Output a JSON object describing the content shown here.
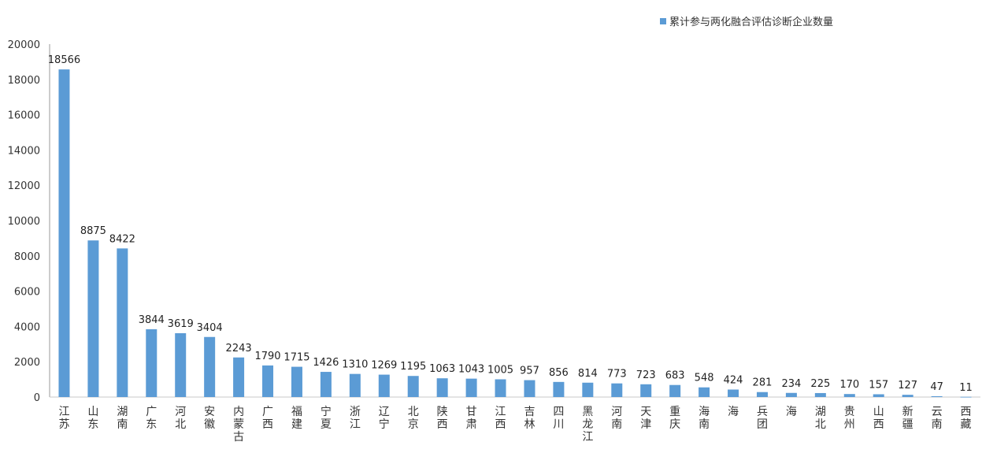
{
  "chart_data": {
    "type": "bar",
    "title": "",
    "xlabel": "",
    "ylabel": "",
    "ylim": [
      0,
      20000
    ],
    "yticks": [
      0,
      2000,
      4000,
      6000,
      8000,
      10000,
      12000,
      14000,
      16000,
      18000,
      20000
    ],
    "grid": false,
    "legend_position": "top-right",
    "bar_color": "#5B9BD5",
    "categories": [
      "江苏",
      "山东",
      "湖南",
      "广东",
      "河北",
      "安徽",
      "内蒙古",
      "广西",
      "福建",
      "宁夏",
      "浙江",
      "辽宁",
      "北京",
      "陕西",
      "甘肃",
      "江西",
      "吉林",
      "四川",
      "黑龙江",
      "河南",
      "天津",
      "重庆",
      "海南",
      "海",
      "兵团",
      "海",
      "湖北",
      "贵州",
      "山西",
      "新疆",
      "云南",
      "西藏"
    ],
    "series": [
      {
        "name": "累计参与两化融合评估诊断企业数量",
        "values": [
          18566,
          8875,
          8422,
          3844,
          3619,
          3404,
          2243,
          1790,
          1715,
          1426,
          1310,
          1269,
          1195,
          1063,
          1043,
          1005,
          957,
          856,
          814,
          773,
          723,
          683,
          548,
          424,
          281,
          234,
          225,
          170,
          157,
          127,
          47,
          11
        ]
      }
    ]
  }
}
